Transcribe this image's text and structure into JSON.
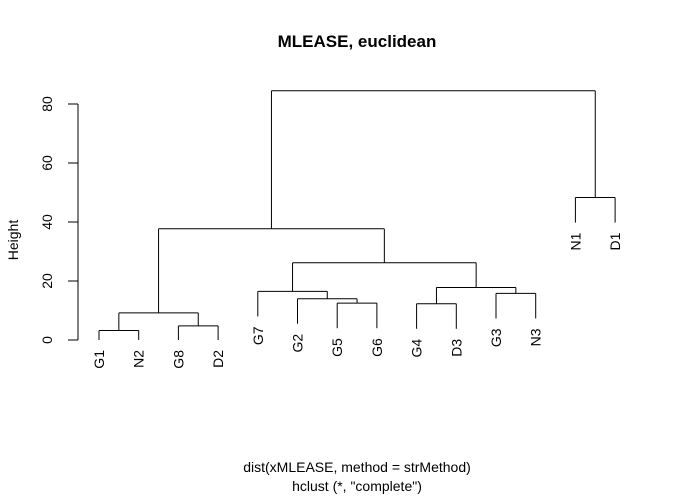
{
  "chart_data": {
    "type": "dendrogram",
    "title": "MLEASE, euclidean",
    "ylabel": "Height",
    "xlabel": "dist(xMLEASE, method = strMethod)",
    "sublabel": "hclust (*, \"complete\")",
    "ylim": [
      0,
      85
    ],
    "yticks": [
      0,
      20,
      40,
      60,
      80
    ],
    "leaves": [
      "G1",
      "N2",
      "G8",
      "D2",
      "G7",
      "G2",
      "G5",
      "G6",
      "G4",
      "D3",
      "G3",
      "N3",
      "N1",
      "D1"
    ],
    "merges": [
      {
        "a": "G1",
        "b": "N2",
        "height": 3.2
      },
      {
        "a": "G8",
        "b": "D2",
        "height": 4.8
      },
      {
        "a": 1,
        "b": 2,
        "height": 9.2
      },
      {
        "a": "G5",
        "b": "G6",
        "height": 12.5
      },
      {
        "a": "G2",
        "b": 4,
        "height": 14.0
      },
      {
        "a": "G7",
        "b": 5,
        "height": 16.5
      },
      {
        "a": "G4",
        "b": "D3",
        "height": 12.3
      },
      {
        "a": "G3",
        "b": "N3",
        "height": 15.8
      },
      {
        "a": 7,
        "b": 8,
        "height": 17.8
      },
      {
        "a": 6,
        "b": 9,
        "height": 26.2
      },
      {
        "a": 3,
        "b": 10,
        "height": 37.7
      },
      {
        "a": "N1",
        "b": "D1",
        "height": 48.3
      },
      {
        "a": 11,
        "b": 12,
        "height": 84.5
      }
    ]
  }
}
